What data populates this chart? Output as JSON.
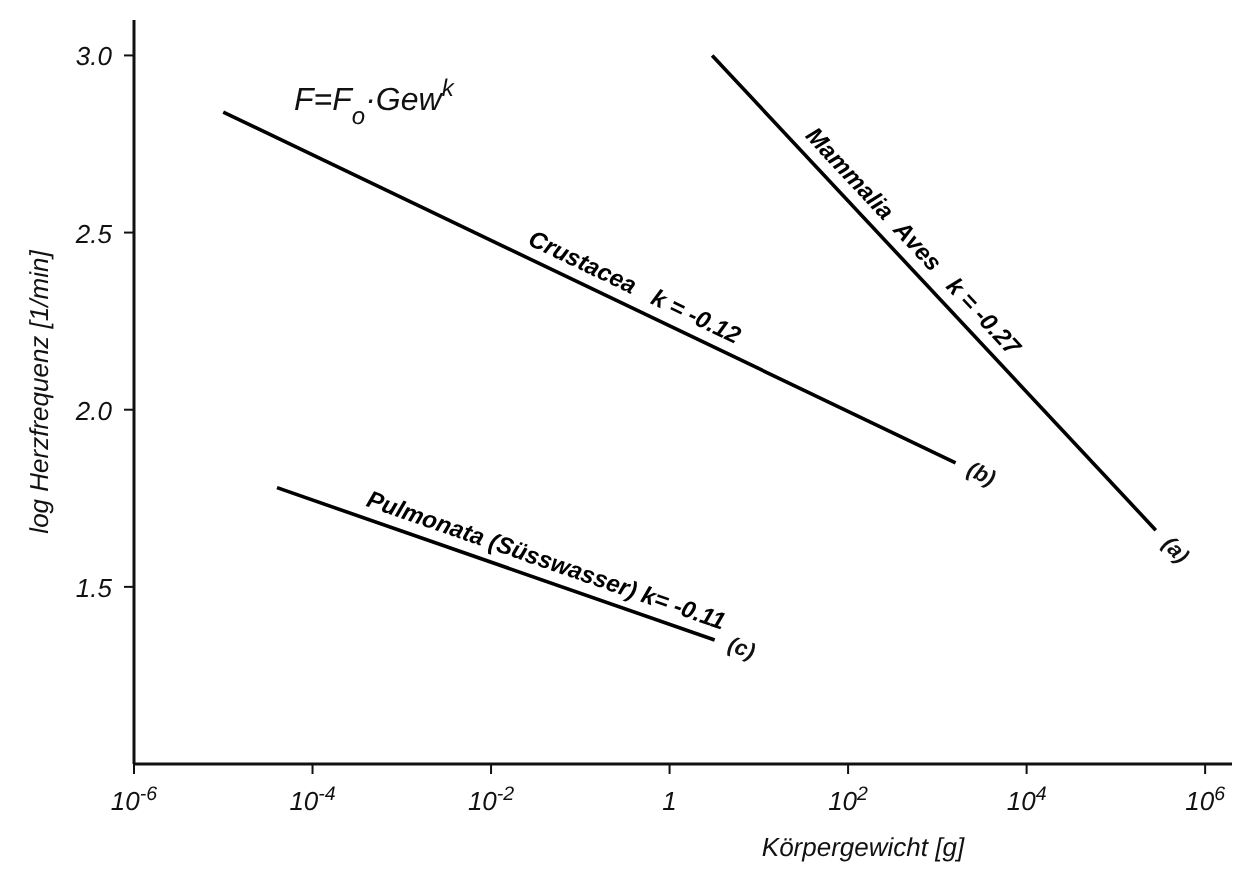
{
  "chart_data": {
    "type": "line",
    "xlabel": "Körpergewicht [g]",
    "ylabel": "log Herzfrequenz [1/min]",
    "log": "x",
    "grid": false,
    "marker": "none",
    "line_style": "solid",
    "xlim": [
      1e-06,
      2000000
    ],
    "xticks": [
      {
        "value": 1e-06,
        "label": "10$^{-6}$"
      },
      {
        "value": 0.0001,
        "label": "10$^{-4}$"
      },
      {
        "value": 0.01,
        "label": "10$^{-2}$"
      },
      1,
      {
        "value": 100,
        "label": "10$^{2}$"
      },
      {
        "value": 10000,
        "label": "10$^{4}$"
      },
      {
        "value": 1000000,
        "label": "10$^{6}$"
      }
    ],
    "ylim": [
      1.0,
      3.1
    ],
    "yticks": [
      1.5,
      {
        "value": 2,
        "label": "2.0"
      },
      2.5,
      {
        "value": 3,
        "label": "3.0"
      }
    ],
    "series": [
      {
        "name": "Mammalia  Aves   k = -0.27",
        "color": "#000000",
        "x": [
          3,
          280000
        ],
        "values": [
          3.0,
          1.66
        ]
      },
      {
        "name": "Crustacea   k = -0.12",
        "color": "#000000",
        "x": [
          1e-05,
          1600
        ],
        "values": [
          2.84,
          1.85
        ]
      },
      {
        "name": "Pulmonata (Süsswasser) k= -0.11",
        "color": "#000000",
        "x": [
          4e-05,
          3.2
        ],
        "values": [
          1.78,
          1.35
        ]
      }
    ],
    "annotations": [
      "F=F$_{o}$·Gew$^{k}$",
      {
        "text": "(a)",
        "x": 280000,
        "y": 1.66
      },
      {
        "text": "(b)",
        "x": 1600,
        "y": 1.85
      },
      {
        "text": "(c)",
        "x": 3.2,
        "y": 1.35
      }
    ]
  }
}
